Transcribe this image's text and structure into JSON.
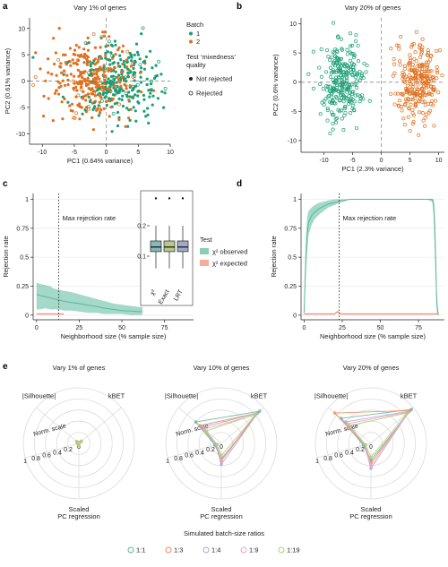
{
  "colors": {
    "batch1": "#1a9e76",
    "batch2": "#e0701e",
    "observed": "#5ab89a",
    "expected": "#f08a6e",
    "r11": "#5ab89a",
    "r13": "#f08a55",
    "r14": "#b4a0d2",
    "r19": "#f2a0c8",
    "r119": "#a8d46a",
    "box1": "#87b9b8",
    "box2": "#b9c98a",
    "box3": "#a3aac8"
  },
  "chart_data": [
    {
      "id": "a",
      "letter": "a",
      "type": "scatter",
      "title": "Vary 1% of genes",
      "xlabel": "PC1 (0.64% variance)",
      "ylabel": "PC2 (0.61% variance)",
      "xlim": [
        -12,
        10
      ],
      "ylim": [
        -12,
        12
      ],
      "xticks": [
        -10,
        -5,
        0,
        5,
        10
      ],
      "yticks": [
        -10,
        -5,
        0,
        5,
        10
      ],
      "series": [
        {
          "name": "1"
        },
        {
          "name": "2"
        }
      ],
      "legend": {
        "title": "Batch",
        "items": [
          "1",
          "2"
        ],
        "test_title_1": "Test ‘mixedness’",
        "test_title_2": "quality",
        "test_items": [
          "Not rejected",
          "Rejected"
        ]
      }
    },
    {
      "id": "b",
      "letter": "b",
      "type": "scatter",
      "title": "Vary 20% of genes",
      "xlabel": "PC1 (2.3% variance)",
      "ylabel": "PC2 (0.6% variance)",
      "xlim": [
        -14,
        11
      ],
      "ylim": [
        -12,
        11
      ],
      "xticks": [
        -10,
        -5,
        0,
        5,
        10
      ],
      "yticks": [
        -10,
        -5,
        0,
        5,
        10
      ]
    },
    {
      "id": "c",
      "letter": "c",
      "type": "line",
      "xlabel": "Neighborhood size (% sample size)",
      "ylabel": "Rejection rate",
      "xlim": [
        -2,
        92
      ],
      "ylim": [
        -0.04,
        1.05
      ],
      "xticks": [
        0,
        25,
        50,
        75
      ],
      "yticks": [
        0,
        0.25,
        0.5,
        0.75,
        1
      ],
      "ytick_labels": [
        "0",
        "0.25",
        "0.5",
        "0.75",
        "1"
      ],
      "vline_x": 13,
      "vline_label": "Max rejection rate",
      "observed": {
        "x": [
          0,
          2,
          5,
          8,
          10,
          13,
          16,
          20,
          25,
          30,
          35,
          40,
          45,
          50,
          55,
          60,
          62
        ],
        "y": [
          0.18,
          0.17,
          0.16,
          0.15,
          0.14,
          0.13,
          0.12,
          0.11,
          0.1,
          0.085,
          0.075,
          0.06,
          0.05,
          0.04,
          0.035,
          0.03,
          0.03
        ],
        "lo": [
          0.05,
          0.05,
          0.06,
          0.05,
          0.05,
          0.05,
          0.04,
          0.04,
          0.03,
          0.02,
          0.02,
          0.01,
          0.01,
          0.01,
          0.0,
          0.0,
          0.0
        ],
        "hi": [
          0.28,
          0.27,
          0.26,
          0.25,
          0.23,
          0.22,
          0.21,
          0.2,
          0.18,
          0.16,
          0.14,
          0.12,
          0.1,
          0.09,
          0.08,
          0.07,
          0.07
        ]
      },
      "expected": {
        "x": [
          0,
          3,
          6,
          10,
          13,
          16
        ],
        "y": [
          0.01,
          0.01,
          0.01,
          0.01,
          0.01,
          0.01
        ]
      },
      "legend": {
        "title": "Test",
        "items": [
          "χ² observed",
          "χ² expected"
        ]
      },
      "inset": {
        "type": "box",
        "categories": [
          "χ²",
          "Exact",
          "LRT"
        ],
        "yticks": [
          0.1,
          0.2
        ],
        "ylim": [
          0,
          0.3
        ],
        "boxes": [
          {
            "min": 0.06,
            "q1": 0.115,
            "median": 0.13,
            "q3": 0.15,
            "max": 0.2,
            "outlier": 0.29
          },
          {
            "min": 0.06,
            "q1": 0.115,
            "median": 0.13,
            "q3": 0.15,
            "max": 0.2,
            "outlier": 0.29
          },
          {
            "min": 0.06,
            "q1": 0.115,
            "median": 0.13,
            "q3": 0.15,
            "max": 0.2,
            "outlier": 0.29
          }
        ]
      }
    },
    {
      "id": "d",
      "letter": "d",
      "type": "line",
      "xlabel": "Neighborhood size (% sample size)",
      "ylabel": "Rejection rate",
      "xlim": [
        -2,
        92
      ],
      "ylim": [
        -0.04,
        1.05
      ],
      "xticks": [
        0,
        25,
        50,
        75
      ],
      "yticks": [
        0,
        0.25,
        0.5,
        0.75,
        1
      ],
      "ytick_labels": [
        "0",
        "0.25",
        "0.5",
        "0.75",
        "1"
      ],
      "vline_x": 23,
      "vline_label": "Max rejection rate",
      "observed": {
        "x": [
          0,
          1,
          2,
          3,
          5,
          7,
          10,
          13,
          16,
          20,
          23,
          26,
          30,
          40,
          50,
          60,
          70,
          80,
          84,
          85,
          86,
          87,
          88
        ],
        "y": [
          0.02,
          0.45,
          0.7,
          0.8,
          0.86,
          0.89,
          0.92,
          0.94,
          0.96,
          0.97,
          0.98,
          0.99,
          1,
          1,
          1,
          1,
          1,
          1,
          1,
          0.95,
          0.6,
          0.1,
          0
        ],
        "lo": [
          0,
          0.3,
          0.55,
          0.7,
          0.78,
          0.83,
          0.87,
          0.9,
          0.93,
          0.95,
          0.97,
          0.98,
          1,
          1,
          1,
          1,
          1,
          1,
          0.98,
          0.85,
          0.4,
          0.02,
          0
        ],
        "hi": [
          0.05,
          0.6,
          0.85,
          0.9,
          0.93,
          0.95,
          0.97,
          0.98,
          0.99,
          1,
          1,
          1,
          1,
          1,
          1,
          1,
          1,
          1,
          1,
          1,
          0.8,
          0.2,
          0.02
        ]
      },
      "expected": {
        "x": [
          0,
          20,
          22,
          24,
          26,
          88
        ],
        "y": [
          0.01,
          0.01,
          0.03,
          0.01,
          0.01,
          0.01
        ]
      }
    },
    {
      "id": "e",
      "letter": "e",
      "type": "radar",
      "axes": [
        "kBET",
        "|Silhouette|",
        "Norm. scale",
        "Scaled PC regression"
      ],
      "axis_labels": {
        "kbet": "kBET",
        "sil": "|Silhouette|",
        "norm": "Norm. scale",
        "pc1": "Scaled",
        "pc2": "PC regression"
      },
      "radial_ticks": [
        "0",
        "0.2",
        "0.4",
        "0.6",
        "0.8",
        "1"
      ],
      "legend_title": "Simulated batch-size ratios",
      "ratios": [
        "1:1",
        "1:3",
        "1:4",
        "1:9",
        "1:19"
      ],
      "panels": [
        {
          "title": "Vary 1% of genes",
          "values": [
            [
              0.06,
              0.05,
              0.02,
              0.03
            ],
            [
              0.05,
              0.04,
              0.02,
              0.03
            ],
            [
              0.06,
              0.05,
              0.02,
              0.02
            ],
            [
              0.05,
              0.05,
              0.02,
              0.03
            ],
            [
              0.06,
              0.04,
              0.02,
              0.03
            ]
          ]
        },
        {
          "title": "Vary 10% of genes",
          "values": [
            [
              0.9,
              0.6,
              0.12,
              0.28
            ],
            [
              0.85,
              0.5,
              0.1,
              0.32
            ],
            [
              0.85,
              0.45,
              0.1,
              0.38
            ],
            [
              0.8,
              0.4,
              0.08,
              0.3
            ],
            [
              0.82,
              0.35,
              0.08,
              0.22
            ]
          ]
        },
        {
          "title": "Vary 20% of genes",
          "values": [
            [
              0.95,
              0.7,
              0.14,
              0.3
            ],
            [
              0.92,
              0.85,
              0.12,
              0.35
            ],
            [
              0.9,
              0.6,
              0.12,
              0.45
            ],
            [
              0.88,
              0.55,
              0.1,
              0.4
            ],
            [
              0.85,
              0.5,
              0.1,
              0.25
            ]
          ]
        }
      ]
    }
  ]
}
